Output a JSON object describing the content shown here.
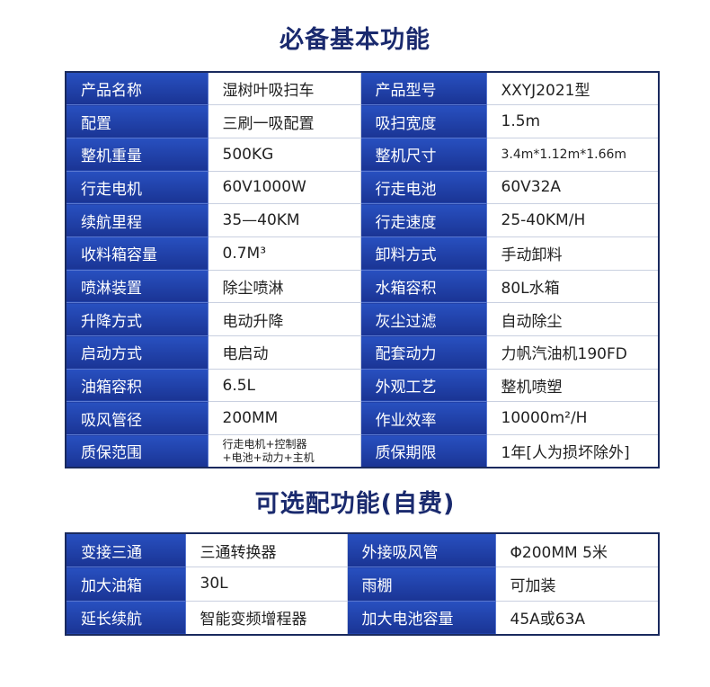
{
  "sections": [
    {
      "title": "必备基本功能",
      "rows": [
        [
          "产品名称",
          "湿树叶吸扫车",
          "产品型号",
          "XXYJ2021型"
        ],
        [
          "配置",
          "三刷一吸配置",
          "吸扫宽度",
          "1.5m"
        ],
        [
          "整机重量",
          "500KG",
          "整机尺寸",
          "3.4m*1.12m*1.66m"
        ],
        [
          "行走电机",
          "60V1000W",
          "行走电池",
          "60V32A"
        ],
        [
          "续航里程",
          "35—40KM",
          "行走速度",
          "25-40KM/H"
        ],
        [
          "收料箱容量",
          "0.7M³",
          "卸料方式",
          "手动卸料"
        ],
        [
          "喷淋装置",
          "除尘喷淋",
          "水箱容积",
          "80L水箱"
        ],
        [
          "升降方式",
          "电动升降",
          "灰尘过滤",
          "自动除尘"
        ],
        [
          "启动方式",
          "电启动",
          "配套动力",
          "力帆汽油机190FD"
        ],
        [
          "油箱容积",
          "6.5L",
          "外观工艺",
          "整机喷塑"
        ],
        [
          "吸风管径",
          "200MM",
          "作业效率",
          "10000m²/H"
        ],
        [
          "质保范围",
          [
            "行走电机+控制器",
            "+电池+动力+主机"
          ],
          "质保期限",
          "1年[人为损坏除外]"
        ]
      ]
    },
    {
      "title": "可选配功能(自费)",
      "rows": [
        [
          "变接三通",
          "三通转换器",
          "外接吸风管",
          "Φ200MM 5米"
        ],
        [
          "加大油箱",
          "30L",
          "雨棚",
          "可加装"
        ],
        [
          "延长续航",
          "智能变频增程器",
          "加大电池容量",
          "45A或63A"
        ]
      ]
    }
  ]
}
